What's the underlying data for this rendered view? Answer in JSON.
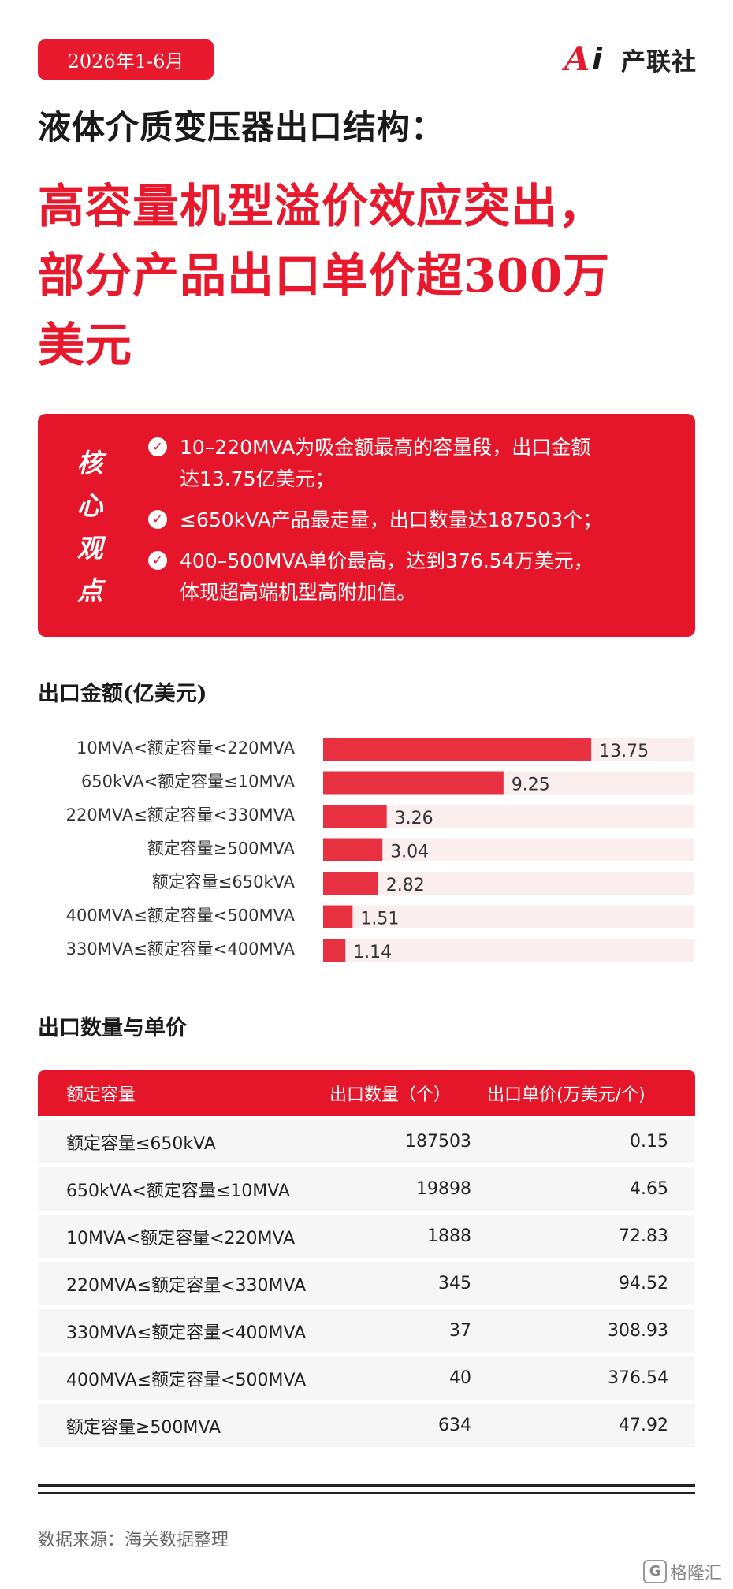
{
  "header": {
    "date_badge": "2026年1-6月",
    "logo_text": "产联社",
    "logo_mark": "Ai",
    "subtitle": "液体介质变压器出口结构：",
    "headline_lines": [
      "高容量机型溢价效应突出，",
      "部分产品出口单价超300万",
      "美元"
    ]
  },
  "key_points": {
    "label_chars": [
      "核",
      "心",
      "观",
      "点"
    ],
    "items": [
      {
        "icon": "check-circle-icon",
        "lines": [
          "10–220MVA为吸金额最高的容量段，出口金额",
          "达13.75亿美元；"
        ]
      },
      {
        "icon": "check-circle-icon",
        "lines": [
          "≤650kVA产品最走量，出口数量达187503个；"
        ]
      },
      {
        "icon": "check-circle-icon",
        "lines": [
          "400–500MVA单价最高，达到376.54万美元，",
          "体现超高端机型高附加值。"
        ]
      }
    ]
  },
  "chart_title": "出口金额(亿美元)",
  "chart_data": {
    "type": "bar",
    "orientation": "horizontal",
    "title": "出口金额(亿美元)",
    "categories": [
      "10MVA<额定容量<220MVA",
      "650kVA<额定容量≤10MVA",
      "220MVA≤额定容量<330MVA",
      "额定容量≥500MVA",
      "额定容量≤650kVA",
      "400MVA≤额定容量<500MVA",
      "330MVA≤额定容量<400MVA"
    ],
    "values": [
      13.75,
      9.25,
      3.26,
      3.04,
      2.82,
      1.51,
      1.14
    ],
    "value_labels": [
      "13.75",
      "9.25",
      "3.26",
      "3.04",
      "2.82",
      "1.51",
      "1.14"
    ],
    "xlim": [
      0,
      19
    ],
    "grid": false,
    "colors": {
      "bar": "#e83140",
      "track": "#fbeeee"
    }
  },
  "table_title": "出口数量与单价",
  "table": {
    "headers": [
      "额定容量",
      "出口数量（个）",
      "出口单价(万美元/个)"
    ],
    "rows": [
      [
        "额定容量≤650kVA",
        "187503",
        "0.15"
      ],
      [
        "650kVA<额定容量≤10MVA",
        "19898",
        "4.65"
      ],
      [
        "10MVA<额定容量<220MVA",
        "1888",
        "72.83"
      ],
      [
        "220MVA≤额定容量<330MVA",
        "345",
        "94.52"
      ],
      [
        "330MVA≤额定容量<400MVA",
        "37",
        "308.93"
      ],
      [
        "400MVA≤额定容量<500MVA",
        "40",
        "376.54"
      ],
      [
        "额定容量≥500MVA",
        "634",
        "47.92"
      ]
    ]
  },
  "footer": {
    "source": "数据来源：海关数据整理",
    "corner_mark": "G",
    "corner_text": "格隆汇"
  },
  "colors": {
    "brand_red": "#e5152a",
    "text_dark": "#1a1a1a",
    "row_bg": "#f6f6f6"
  }
}
